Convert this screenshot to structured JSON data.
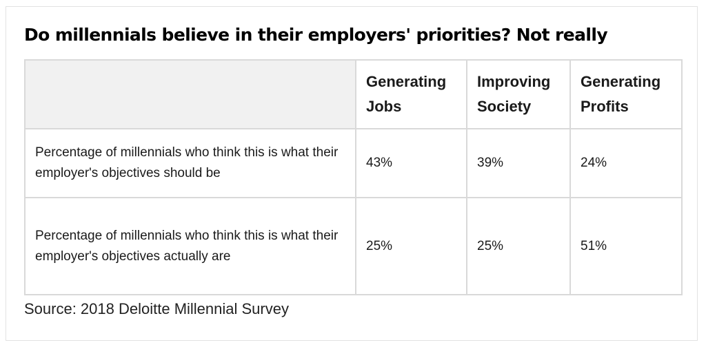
{
  "chart_data": {
    "type": "table",
    "title": "Do millennials believe in their employers' priorities? Not really",
    "columns": [
      {
        "line1": "Generating",
        "line2": "Jobs"
      },
      {
        "line1": "Improving",
        "line2": "Society"
      },
      {
        "line1": "Generating",
        "line2": "Profits"
      }
    ],
    "rows": [
      {
        "label": "Percentage of millennials who think this is what their employer's objectives should be",
        "values": [
          "43%",
          "39%",
          "24%"
        ]
      },
      {
        "label": "Percentage of millennials who think this is what their employer's objectives actually are",
        "values": [
          "25%",
          "25%",
          "51%"
        ]
      }
    ],
    "source": "Source: 2018 Deloitte Millennial Survey"
  }
}
